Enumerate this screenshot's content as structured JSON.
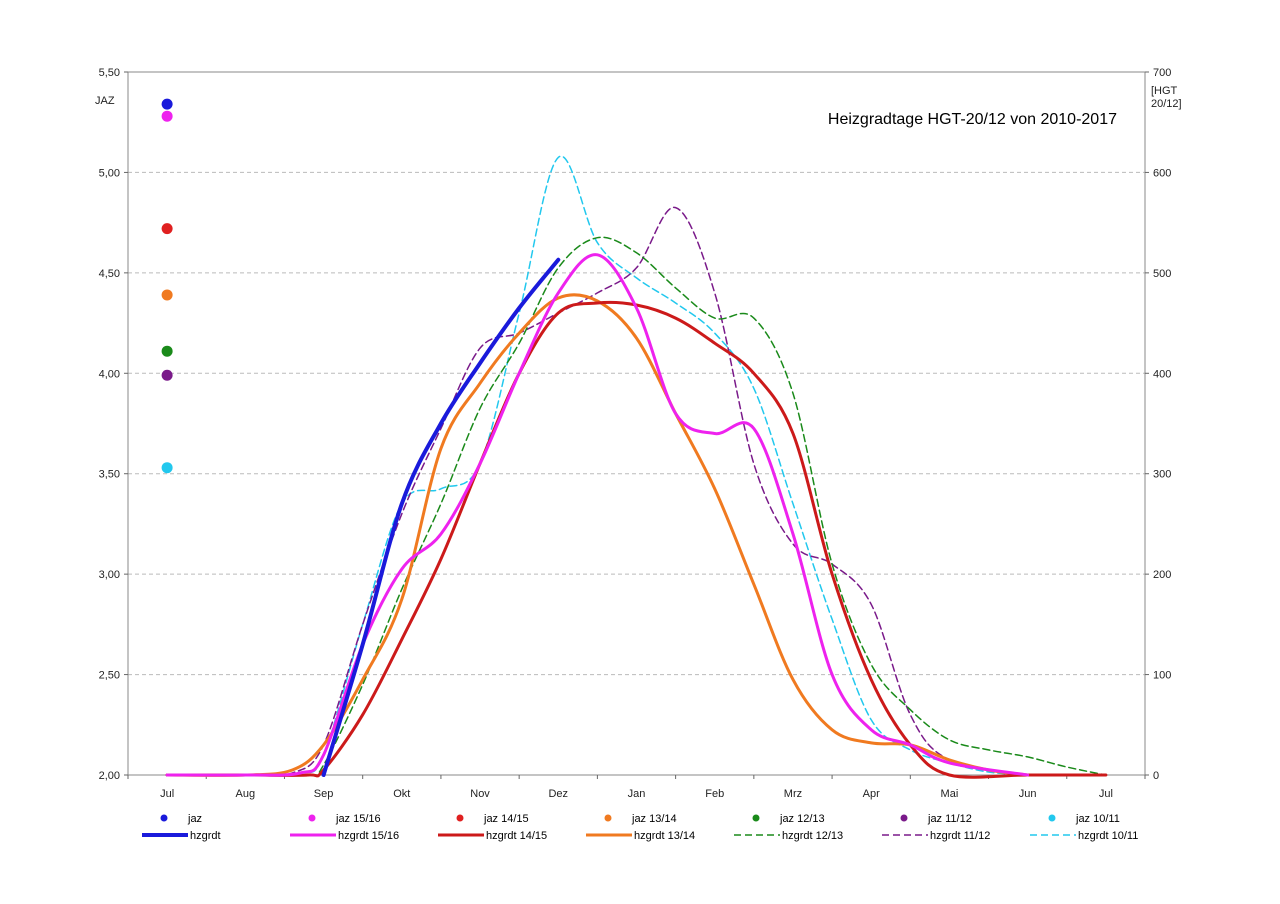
{
  "chart_data": {
    "type": "line",
    "title": "Heizgradtage HGT-20/12 von 2010-2017",
    "ylabel_left": "JAZ",
    "ylabel_right": "[HGT\n20/12]",
    "categories": [
      "Jul",
      "Aug",
      "Sep",
      "Okt",
      "Nov",
      "Dez",
      "Jan",
      "Feb",
      "Mrz",
      "Apr",
      "Mai",
      "Jun",
      "Jul"
    ],
    "ylim_left": [
      2.0,
      5.5
    ],
    "ylim_right": [
      0,
      700
    ],
    "yticks_left": [
      "2,00",
      "2,50",
      "3,00",
      "3,50",
      "4,00",
      "4,50",
      "5,00",
      "5,50"
    ],
    "yticks_right": [
      "0",
      "100",
      "200",
      "300",
      "400",
      "500",
      "600",
      "700"
    ],
    "grid": "horizontal dashed",
    "legend_position": "bottom",
    "jaz_points": [
      {
        "name": "jaz",
        "color": "#1a1adb",
        "x": "Jul",
        "value": 5.34
      },
      {
        "name": "jaz 15/16",
        "color": "#ee22ee",
        "x": "Jul",
        "value": 5.28
      },
      {
        "name": "jaz 14/15",
        "color": "#e02020",
        "x": "Jul",
        "value": 4.72
      },
      {
        "name": "jaz 13/14",
        "color": "#f07a20",
        "x": "Jul",
        "value": 4.39
      },
      {
        "name": "jaz 12/13",
        "color": "#1a8a1a",
        "x": "Jul",
        "value": 4.11
      },
      {
        "name": "jaz 11/12",
        "color": "#7a1a8a",
        "x": "Jul",
        "value": 3.99
      },
      {
        "name": "jaz 10/11",
        "color": "#22c8ee",
        "x": "Jul",
        "value": 3.53
      }
    ],
    "series": [
      {
        "name": "hzgrdt",
        "color": "#1a1adb",
        "dash": false,
        "width": 4,
        "x": [
          2.0,
          2.5,
          3.0,
          3.5,
          4.0,
          4.5,
          5.0
        ],
        "values": [
          0,
          130,
          270,
          350,
          410,
          465,
          513
        ]
      },
      {
        "name": "hzgrdt 15/16",
        "color": "#ee22ee",
        "dash": false,
        "width": 3,
        "x": [
          0,
          1,
          1.7,
          2.0,
          2.5,
          3.0,
          3.5,
          4.0,
          4.5,
          5.0,
          5.5,
          6.0,
          6.5,
          7.0,
          7.5,
          8.0,
          8.5,
          9.0,
          9.5,
          10.0,
          11.0
        ],
        "values": [
          0,
          0,
          2,
          20,
          130,
          205,
          240,
          310,
          400,
          480,
          518,
          465,
          360,
          340,
          345,
          240,
          100,
          45,
          30,
          12,
          0
        ]
      },
      {
        "name": "hzgrdt 14/15",
        "color": "#cc1a1a",
        "dash": false,
        "width": 3,
        "x": [
          0,
          1,
          1.8,
          2.0,
          2.5,
          3.0,
          3.5,
          4.0,
          4.5,
          5.0,
          5.5,
          6.0,
          6.5,
          7.0,
          7.5,
          8.0,
          8.5,
          9.0,
          9.5,
          10.0,
          11.0,
          12.0
        ],
        "values": [
          0,
          0,
          0,
          5,
          60,
          135,
          215,
          310,
          400,
          460,
          470,
          468,
          455,
          430,
          400,
          340,
          200,
          95,
          30,
          0,
          0,
          0
        ]
      },
      {
        "name": "hzgrdt 13/14",
        "color": "#f07a20",
        "dash": false,
        "width": 3,
        "x": [
          0,
          1,
          1.6,
          2.0,
          2.5,
          3.0,
          3.5,
          4.0,
          4.5,
          5.0,
          5.5,
          6.0,
          6.5,
          7.0,
          7.5,
          8.0,
          8.5,
          9.0,
          9.5,
          10.0,
          10.5,
          11.0
        ],
        "values": [
          0,
          0,
          5,
          30,
          95,
          175,
          325,
          390,
          440,
          475,
          472,
          435,
          360,
          285,
          190,
          95,
          45,
          32,
          30,
          15,
          5,
          0
        ]
      },
      {
        "name": "hzgrdt 12/13",
        "color": "#1a8a1a",
        "dash": true,
        "width": 1.5,
        "x": [
          0,
          1,
          1.8,
          2.0,
          2.5,
          3.0,
          3.5,
          4.0,
          4.5,
          5.0,
          5.5,
          6.0,
          6.5,
          7.0,
          7.5,
          8.0,
          8.5,
          9.0,
          9.5,
          10.0,
          10.5,
          11.0,
          11.5,
          12.0
        ],
        "values": [
          0,
          0,
          0,
          10,
          90,
          185,
          270,
          365,
          430,
          505,
          535,
          520,
          485,
          455,
          455,
          380,
          210,
          110,
          65,
          35,
          25,
          18,
          8,
          0
        ]
      },
      {
        "name": "hzgrdt 11/12",
        "color": "#7a1a8a",
        "dash": true,
        "width": 1.5,
        "x": [
          0,
          1,
          1.6,
          2.0,
          2.5,
          3.0,
          3.5,
          4.0,
          4.5,
          5.0,
          5.5,
          6.0,
          6.5,
          7.0,
          7.5,
          8.0,
          8.5,
          9.0,
          9.5,
          10.0,
          11.0
        ],
        "values": [
          0,
          0,
          2,
          30,
          150,
          260,
          345,
          425,
          440,
          460,
          480,
          505,
          565,
          480,
          310,
          230,
          210,
          170,
          60,
          15,
          0
        ]
      },
      {
        "name": "hzgrdt 10/11",
        "color": "#22c8ee",
        "dash": true,
        "width": 1.5,
        "x": [
          0,
          1,
          1.7,
          2.0,
          2.5,
          3.0,
          3.5,
          4.0,
          4.5,
          5.0,
          5.5,
          6.0,
          6.5,
          7.0,
          7.5,
          8.0,
          8.5,
          9.0,
          9.5,
          10.0,
          10.5,
          11.0
        ],
        "values": [
          0,
          0,
          2,
          20,
          150,
          270,
          285,
          310,
          460,
          615,
          530,
          495,
          470,
          440,
          385,
          270,
          155,
          55,
          25,
          12,
          3,
          0
        ]
      }
    ]
  }
}
